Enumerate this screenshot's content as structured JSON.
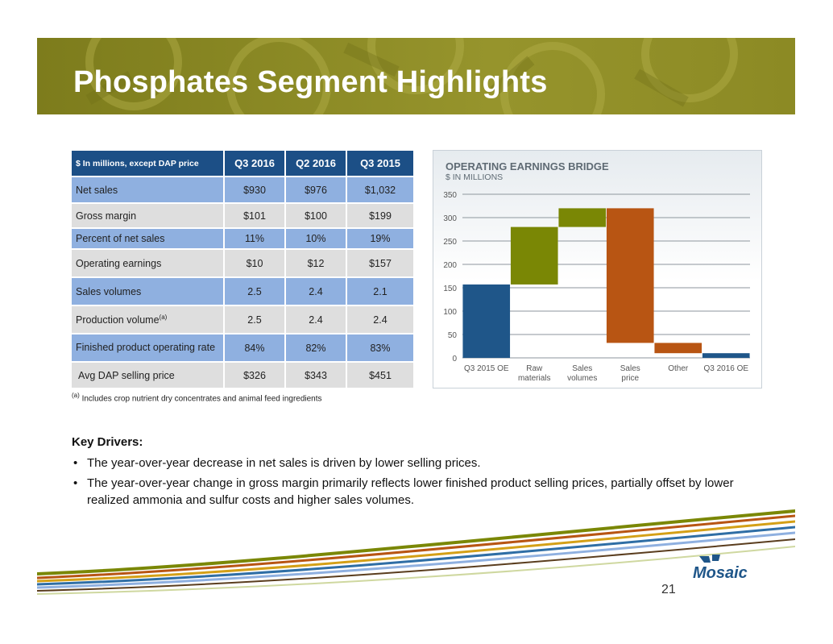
{
  "title": "Phosphates Segment Highlights",
  "table": {
    "header": [
      "$ In millions, except DAP price",
      "Q3 2016",
      "Q2 2016",
      "Q3 2015"
    ],
    "rows": [
      {
        "label": "Net sales",
        "values": [
          "$930",
          "$976",
          "$1,032"
        ]
      },
      {
        "label": "Gross margin",
        "values": [
          "$101",
          "$100",
          "$199"
        ]
      },
      {
        "label": "Percent of net sales",
        "values": [
          "11%",
          "10%",
          "19%"
        ]
      },
      {
        "label": "Operating earnings",
        "values": [
          "$10",
          "$12",
          "$157"
        ]
      },
      {
        "label": "Sales volumes",
        "values": [
          "2.5",
          "2.4",
          "2.1"
        ]
      },
      {
        "label": "Production volume",
        "label_sup": "(a)",
        "values": [
          "2.5",
          "2.4",
          "2.4"
        ]
      },
      {
        "label": "Finished product operating rate",
        "values": [
          "84%",
          "82%",
          "83%"
        ]
      },
      {
        "label": "Avg DAP selling price",
        "values": [
          "$326",
          "$343",
          "$451"
        ]
      }
    ],
    "footnote_mark": "(a)",
    "footnote": "Includes crop nutrient dry concentrates and animal feed ingredients"
  },
  "chart_data": {
    "type": "bar",
    "subtype": "waterfall",
    "title": "OPERATING EARNINGS BRIDGE",
    "subtitle": "$ IN MILLIONS",
    "categories": [
      "Q3 2015 OE",
      "Raw materials",
      "Sales volumes",
      "Sales price",
      "Other",
      "Q3 2016 OE"
    ],
    "bars": [
      {
        "category": "Q3 2015 OE",
        "start": 0,
        "end": 157,
        "kind": "total"
      },
      {
        "category": "Raw materials",
        "start": 157,
        "end": 280,
        "kind": "increase"
      },
      {
        "category": "Sales volumes",
        "start": 280,
        "end": 320,
        "kind": "increase"
      },
      {
        "category": "Sales price",
        "start": 320,
        "end": 32,
        "kind": "decrease"
      },
      {
        "category": "Other",
        "start": 32,
        "end": 10,
        "kind": "decrease"
      },
      {
        "category": "Q3 2016 OE",
        "start": 0,
        "end": 10,
        "kind": "total"
      }
    ],
    "ylim": [
      0,
      350
    ],
    "yticks": [
      0,
      50,
      100,
      150,
      200,
      250,
      300,
      350
    ],
    "grid": true,
    "colors": {
      "total": "#1f5689",
      "increase": "#7a8705",
      "decrease": "#b85513"
    }
  },
  "key_drivers": {
    "heading": "Key  Drivers:",
    "bullets": [
      "The year-over-year decrease in net sales is driven by lower selling prices.",
      "The year-over-year change in gross margin primarily reflects lower finished product selling prices, partially offset by lower realized ammonia and sulfur costs and higher sales volumes."
    ]
  },
  "logo": {
    "text": "Mosaic"
  },
  "page_number": "21",
  "colors": {
    "banner": "#8a8a22",
    "table_header": "#1c4f86",
    "row_blue": "#8fb0e0",
    "row_gray": "#dedede"
  }
}
